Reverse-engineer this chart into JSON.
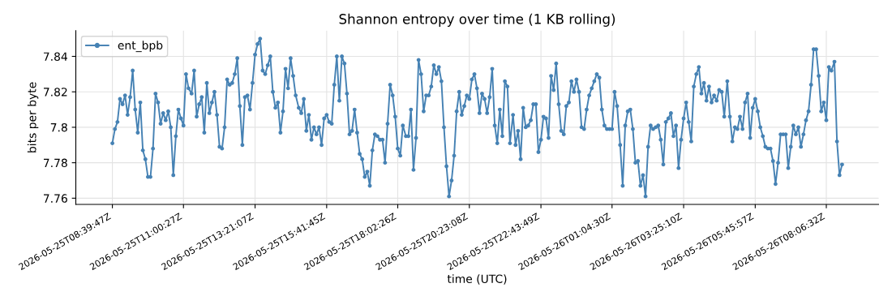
{
  "chart_data": {
    "type": "line",
    "title": "Shannon entropy over time (1 KB rolling)",
    "xlabel": "time (UTC)",
    "ylabel": "bits per byte",
    "xlim": [
      "2026-05-25T07:28",
      "2026-05-26T09:49"
    ],
    "xticks": [
      {
        "value": "2026-05-25T08:40",
        "label": "2026-05-25T08:39:47Z"
      },
      {
        "value": "2026-05-25T11:00",
        "label": "2026-05-25T11:00:27Z"
      },
      {
        "value": "2026-05-25T13:21",
        "label": "2026-05-25T13:21:07Z"
      },
      {
        "value": "2026-05-25T15:42",
        "label": "2026-05-25T15:41:45Z"
      },
      {
        "value": "2026-05-25T18:02",
        "label": "2026-05-25T18:02:26Z"
      },
      {
        "value": "2026-05-25T20:23",
        "label": "2026-05-25T20:23:08Z"
      },
      {
        "value": "2026-05-25T22:44",
        "label": "2026-05-25T22:43:49Z"
      },
      {
        "value": "2026-05-26T01:04",
        "label": "2026-05-26T01:04:30Z"
      },
      {
        "value": "2026-05-26T03:25",
        "label": "2026-05-26T03:25:10Z"
      },
      {
        "value": "2026-05-26T05:46",
        "label": "2026-05-26T05:45:57Z"
      },
      {
        "value": "2026-05-26T08:06",
        "label": "2026-05-26T08:06:32Z"
      }
    ],
    "x": [
      "2026-05-25T08:40",
      "2026-05-25T08:45",
      "2026-05-25T08:50",
      "2026-05-25T08:55",
      "2026-05-25T09:00",
      "2026-05-25T09:05",
      "2026-05-25T09:10",
      "2026-05-25T09:15",
      "2026-05-25T09:20",
      "2026-05-25T09:25",
      "2026-05-25T09:30",
      "2026-05-25T09:35",
      "2026-05-25T09:40",
      "2026-05-25T09:45",
      "2026-05-25T09:50",
      "2026-05-25T09:55",
      "2026-05-25T10:00",
      "2026-05-25T10:05",
      "2026-05-25T10:10",
      "2026-05-25T10:15",
      "2026-05-25T10:20",
      "2026-05-25T10:25",
      "2026-05-25T10:30",
      "2026-05-25T10:35",
      "2026-05-25T10:40",
      "2026-05-25T10:45",
      "2026-05-25T10:50",
      "2026-05-25T10:55",
      "2026-05-25T11:00",
      "2026-05-25T11:05",
      "2026-05-25T11:10",
      "2026-05-25T11:16",
      "2026-05-25T11:21",
      "2026-05-25T11:26",
      "2026-05-25T11:31",
      "2026-05-25T11:36",
      "2026-05-25T11:41",
      "2026-05-25T11:46",
      "2026-05-25T11:51",
      "2026-05-25T11:56",
      "2026-05-25T12:01",
      "2026-05-25T12:06",
      "2026-05-25T12:11",
      "2026-05-25T12:16",
      "2026-05-25T12:21",
      "2026-05-25T12:26",
      "2026-05-25T12:31",
      "2026-05-25T12:36",
      "2026-05-25T12:41",
      "2026-05-25T12:46",
      "2026-05-25T12:51",
      "2026-05-25T12:56",
      "2026-05-25T13:01",
      "2026-05-25T13:06",
      "2026-05-25T13:11",
      "2026-05-25T13:16",
      "2026-05-25T13:21",
      "2026-05-25T13:26",
      "2026-05-25T13:31",
      "2026-05-25T13:36",
      "2026-05-25T13:41",
      "2026-05-25T13:46",
      "2026-05-25T13:51",
      "2026-05-25T13:56",
      "2026-05-25T14:01",
      "2026-05-25T14:06",
      "2026-05-25T14:11",
      "2026-05-25T14:16",
      "2026-05-25T14:21",
      "2026-05-25T14:26",
      "2026-05-25T14:31",
      "2026-05-25T14:36",
      "2026-05-25T14:41",
      "2026-05-25T14:47",
      "2026-05-25T14:52",
      "2026-05-25T14:57",
      "2026-05-25T15:02",
      "2026-05-25T15:07",
      "2026-05-25T15:12",
      "2026-05-25T15:17",
      "2026-05-25T15:22",
      "2026-05-25T15:27",
      "2026-05-25T15:32",
      "2026-05-25T15:37",
      "2026-05-25T15:42",
      "2026-05-25T15:47",
      "2026-05-25T15:52",
      "2026-05-25T15:57",
      "2026-05-25T16:02",
      "2026-05-25T16:07",
      "2026-05-25T16:12",
      "2026-05-25T16:17",
      "2026-05-25T16:22",
      "2026-05-25T16:27",
      "2026-05-25T16:32",
      "2026-05-25T16:37",
      "2026-05-25T16:42",
      "2026-05-25T16:47",
      "2026-05-25T16:52",
      "2026-05-25T16:57",
      "2026-05-25T17:02",
      "2026-05-25T17:07",
      "2026-05-25T17:12",
      "2026-05-25T17:17",
      "2026-05-25T17:22",
      "2026-05-25T17:27",
      "2026-05-25T17:32",
      "2026-05-25T17:37",
      "2026-05-25T17:42",
      "2026-05-25T17:47",
      "2026-05-25T17:52",
      "2026-05-25T17:57",
      "2026-05-25T18:02",
      "2026-05-25T18:07",
      "2026-05-25T18:12",
      "2026-05-25T18:18",
      "2026-05-25T18:23",
      "2026-05-25T18:28",
      "2026-05-25T18:33",
      "2026-05-25T18:38",
      "2026-05-25T18:43",
      "2026-05-25T18:48",
      "2026-05-25T18:53",
      "2026-05-25T18:58",
      "2026-05-25T19:03",
      "2026-05-25T19:08",
      "2026-05-25T19:13",
      "2026-05-25T19:18",
      "2026-05-25T19:23",
      "2026-05-25T19:28",
      "2026-05-25T19:33",
      "2026-05-25T19:38",
      "2026-05-25T19:43",
      "2026-05-25T19:48",
      "2026-05-25T19:53",
      "2026-05-25T19:58",
      "2026-05-25T20:03",
      "2026-05-25T20:08",
      "2026-05-25T20:13",
      "2026-05-25T20:18",
      "2026-05-25T20:23",
      "2026-05-25T20:28",
      "2026-05-25T20:33",
      "2026-05-25T20:38",
      "2026-05-25T20:43",
      "2026-05-25T20:48",
      "2026-05-25T20:53",
      "2026-05-25T20:58",
      "2026-05-25T21:03",
      "2026-05-25T21:08",
      "2026-05-25T21:13",
      "2026-05-25T21:18",
      "2026-05-25T21:23",
      "2026-05-25T21:28",
      "2026-05-25T21:33",
      "2026-05-25T21:38",
      "2026-05-25T21:43",
      "2026-05-25T21:49",
      "2026-05-25T21:54",
      "2026-05-25T21:59",
      "2026-05-25T22:04",
      "2026-05-25T22:09",
      "2026-05-25T22:14",
      "2026-05-25T22:19",
      "2026-05-25T22:24",
      "2026-05-25T22:29",
      "2026-05-25T22:34",
      "2026-05-25T22:39",
      "2026-05-25T22:44",
      "2026-05-25T22:49",
      "2026-05-25T22:54",
      "2026-05-25T22:59",
      "2026-05-25T23:04",
      "2026-05-25T23:09",
      "2026-05-25T23:14",
      "2026-05-25T23:19",
      "2026-05-25T23:24",
      "2026-05-25T23:29",
      "2026-05-25T23:34",
      "2026-05-25T23:39",
      "2026-05-25T23:44",
      "2026-05-25T23:49",
      "2026-05-25T23:54",
      "2026-05-25T23:59",
      "2026-05-26T00:04",
      "2026-05-26T00:09",
      "2026-05-26T00:14",
      "2026-05-26T00:19",
      "2026-05-26T00:24",
      "2026-05-26T00:29",
      "2026-05-26T00:34",
      "2026-05-26T00:39",
      "2026-05-26T00:44",
      "2026-05-26T00:49",
      "2026-05-26T00:54",
      "2026-05-26T00:59",
      "2026-05-26T01:04",
      "2026-05-26T01:09",
      "2026-05-26T01:14",
      "2026-05-26T01:20",
      "2026-05-26T01:25",
      "2026-05-26T01:30",
      "2026-05-26T01:35",
      "2026-05-26T01:40",
      "2026-05-26T01:45",
      "2026-05-26T01:50",
      "2026-05-26T01:55",
      "2026-05-26T02:00",
      "2026-05-26T02:05",
      "2026-05-26T02:10",
      "2026-05-26T02:15",
      "2026-05-26T02:20",
      "2026-05-26T02:25",
      "2026-05-26T02:30",
      "2026-05-26T02:35",
      "2026-05-26T02:40",
      "2026-05-26T02:45",
      "2026-05-26T02:50",
      "2026-05-26T02:55",
      "2026-05-26T03:00",
      "2026-05-26T03:05",
      "2026-05-26T03:10",
      "2026-05-26T03:15",
      "2026-05-26T03:20",
      "2026-05-26T03:25",
      "2026-05-26T03:30",
      "2026-05-26T03:35",
      "2026-05-26T03:40",
      "2026-05-26T03:45",
      "2026-05-26T03:50",
      "2026-05-26T03:55",
      "2026-05-26T04:00",
      "2026-05-26T04:05",
      "2026-05-26T04:10",
      "2026-05-26T04:15",
      "2026-05-26T04:20",
      "2026-05-26T04:25",
      "2026-05-26T04:30",
      "2026-05-26T04:35",
      "2026-05-26T04:40",
      "2026-05-26T04:45",
      "2026-05-26T04:51",
      "2026-05-26T04:56",
      "2026-05-26T05:01",
      "2026-05-26T05:06",
      "2026-05-26T05:11",
      "2026-05-26T05:16",
      "2026-05-26T05:21",
      "2026-05-26T05:26",
      "2026-05-26T05:31",
      "2026-05-26T05:36",
      "2026-05-26T05:41",
      "2026-05-26T05:46",
      "2026-05-26T05:51",
      "2026-05-26T05:56",
      "2026-05-26T06:01",
      "2026-05-26T06:06",
      "2026-05-26T06:11",
      "2026-05-26T06:16",
      "2026-05-26T06:21",
      "2026-05-26T06:26",
      "2026-05-26T06:31",
      "2026-05-26T06:36",
      "2026-05-26T06:41",
      "2026-05-26T06:46",
      "2026-05-26T06:51",
      "2026-05-26T06:56",
      "2026-05-26T07:01",
      "2026-05-26T07:06",
      "2026-05-26T07:11",
      "2026-05-26T07:16",
      "2026-05-26T07:21",
      "2026-05-26T07:26",
      "2026-05-26T07:31",
      "2026-05-26T07:36",
      "2026-05-26T07:41",
      "2026-05-26T07:46",
      "2026-05-26T07:51",
      "2026-05-26T07:56",
      "2026-05-26T08:01",
      "2026-05-26T08:06",
      "2026-05-26T08:11",
      "2026-05-26T08:16",
      "2026-05-26T08:22",
      "2026-05-26T08:27",
      "2026-05-26T08:32",
      "2026-05-26T08:37"
    ],
    "ylim": [
      7.7565,
      7.8545
    ],
    "yticks": [
      7.76,
      7.78,
      7.8,
      7.82,
      7.84
    ],
    "grid": true,
    "legend": "top left",
    "marker": "circle",
    "line_style": "solid",
    "series": [
      {
        "name": "ent_bpb",
        "color": "#4682b4",
        "values": [
          7.791,
          7.799,
          7.803,
          7.816,
          7.813,
          7.818,
          7.807,
          7.817,
          7.832,
          7.81,
          7.797,
          7.814,
          7.787,
          7.782,
          7.772,
          7.772,
          7.788,
          7.819,
          7.814,
          7.802,
          7.808,
          7.804,
          7.809,
          7.8,
          7.773,
          7.795,
          7.81,
          7.805,
          7.801,
          7.83,
          7.822,
          7.819,
          7.832,
          7.806,
          7.813,
          7.817,
          7.797,
          7.825,
          7.808,
          7.814,
          7.82,
          7.807,
          7.789,
          7.788,
          7.8,
          7.827,
          7.824,
          7.825,
          7.83,
          7.839,
          7.812,
          7.79,
          7.817,
          7.818,
          7.81,
          7.825,
          7.841,
          7.847,
          7.85,
          7.832,
          7.83,
          7.835,
          7.84,
          7.82,
          7.811,
          7.814,
          7.797,
          7.809,
          7.833,
          7.822,
          7.839,
          7.829,
          7.818,
          7.811,
          7.808,
          7.816,
          7.798,
          7.807,
          7.793,
          7.8,
          7.796,
          7.8,
          7.79,
          7.805,
          7.807,
          7.803,
          7.802,
          7.824,
          7.84,
          7.815,
          7.84,
          7.836,
          7.819,
          7.796,
          7.798,
          7.81,
          7.797,
          7.785,
          7.782,
          7.772,
          7.775,
          7.767,
          7.787,
          7.796,
          7.795,
          7.793,
          7.793,
          7.78,
          7.802,
          7.824,
          7.818,
          7.806,
          7.788,
          7.784,
          7.801,
          7.795,
          7.795,
          7.81,
          7.776,
          7.794,
          7.838,
          7.83,
          7.809,
          7.818,
          7.818,
          7.823,
          7.835,
          7.83,
          7.834,
          7.826,
          7.8,
          7.778,
          7.761,
          7.77,
          7.784,
          7.809,
          7.82,
          7.807,
          7.812,
          7.818,
          7.816,
          7.827,
          7.83,
          7.822,
          7.808,
          7.819,
          7.816,
          7.808,
          7.817,
          7.833,
          7.801,
          7.791,
          7.81,
          7.795,
          7.826,
          7.823,
          7.791,
          7.807,
          7.79,
          7.798,
          7.782,
          7.811,
          7.8,
          7.801,
          7.804,
          7.813,
          7.813,
          7.786,
          7.793,
          7.806,
          7.805,
          7.794,
          7.829,
          7.821,
          7.836,
          7.813,
          7.798,
          7.796,
          7.812,
          7.814,
          7.826,
          7.82,
          7.827,
          7.82,
          7.8,
          7.799,
          7.81,
          7.818,
          7.822,
          7.826,
          7.83,
          7.828,
          7.81,
          7.801,
          7.799,
          7.799,
          7.799,
          7.82,
          7.812,
          7.79,
          7.767,
          7.801,
          7.809,
          7.81,
          7.799,
          7.78,
          7.781,
          7.767,
          7.773,
          7.761,
          7.789,
          7.801,
          7.799,
          7.8,
          7.801,
          7.793,
          7.779,
          7.803,
          7.805,
          7.808,
          7.795,
          7.801,
          7.777,
          7.793,
          7.805,
          7.814,
          7.803,
          7.792,
          7.823,
          7.83,
          7.834,
          7.819,
          7.825,
          7.815,
          7.823,
          7.814,
          7.818,
          7.815,
          7.821,
          7.82,
          7.806,
          7.826,
          7.806,
          7.792,
          7.8,
          7.799,
          7.806,
          7.799,
          7.814,
          7.819,
          7.794,
          7.811,
          7.816,
          7.809,
          7.8,
          7.795,
          7.789,
          7.788,
          7.788,
          7.781,
          7.768,
          7.78,
          7.796,
          7.796,
          7.796,
          7.777,
          7.789,
          7.801,
          7.796,
          7.8,
          7.789,
          7.796,
          7.804,
          7.809,
          7.824,
          7.844,
          7.844,
          7.829,
          7.809,
          7.814,
          7.804,
          7.834,
          7.832,
          7.837,
          7.792,
          7.773,
          7.779
        ]
      }
    ]
  }
}
